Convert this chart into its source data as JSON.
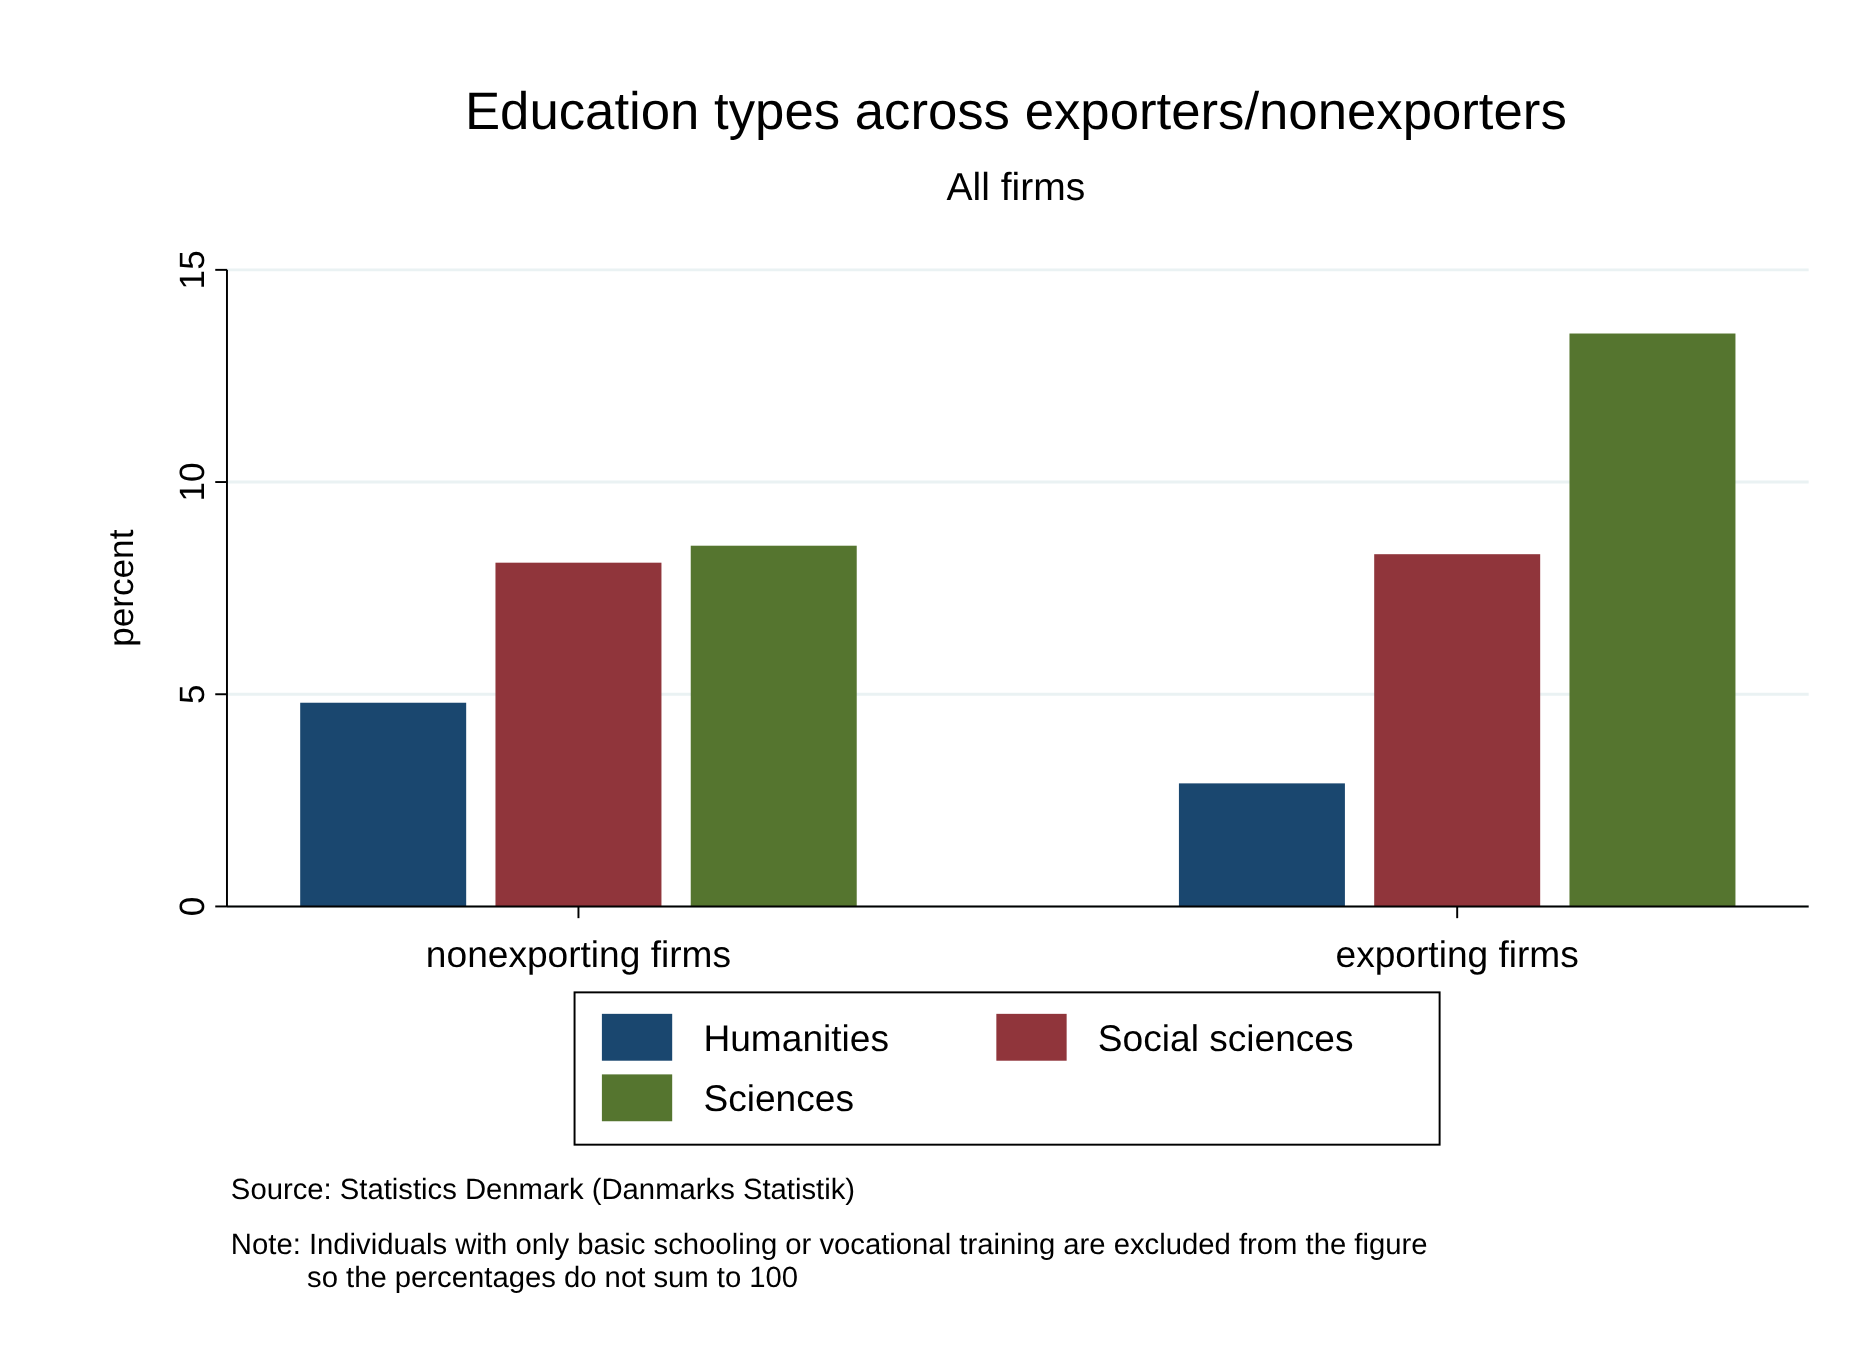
{
  "chart_data": {
    "type": "bar",
    "title": "Education types across exporters/nonexporters",
    "subtitle": "All firms",
    "ylabel": "percent",
    "categories": [
      "nonexporting firms",
      "exporting firms"
    ],
    "series": [
      {
        "name": "Humanities",
        "color": "#1a476f",
        "values": [
          4.8,
          2.9
        ]
      },
      {
        "name": "Social sciences",
        "color": "#90353b",
        "values": [
          8.1,
          8.3
        ]
      },
      {
        "name": "Sciences",
        "color": "#55752f",
        "values": [
          8.5,
          13.5
        ]
      }
    ],
    "ylim": [
      0,
      15
    ],
    "yticks": [
      0,
      5,
      10,
      15
    ],
    "grid": "y",
    "legend": "bottom",
    "annotations": [
      "Source: Statistics Denmark (Danmarks Statistik)",
      "Note: Individuals with only basic schooling or vocational training are excluded from the figure so the percentages do not sum to 100"
    ]
  }
}
